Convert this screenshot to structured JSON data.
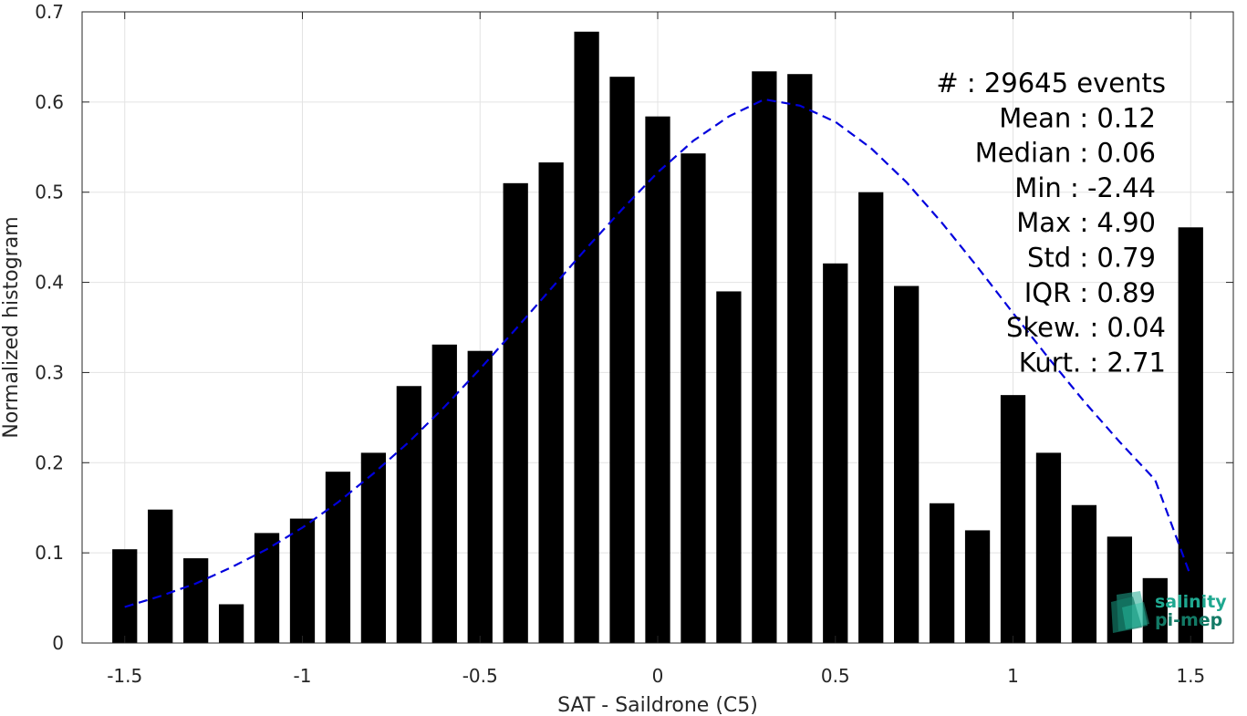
{
  "chart_data": {
    "type": "bar",
    "xlabel": "SAT - Saildrone (C5)",
    "ylabel": "Normalized histogram",
    "xlim": [
      -1.62,
      1.62
    ],
    "ylim": [
      0,
      0.7
    ],
    "xticks": [
      -1.5,
      -1,
      -0.5,
      0,
      0.5,
      1,
      1.5
    ],
    "xtick_labels": [
      "-1.5",
      "-1",
      "-0.5",
      "0",
      "0.5",
      "1",
      "1.5"
    ],
    "yticks": [
      0,
      0.1,
      0.2,
      0.3,
      0.4,
      0.5,
      0.6,
      0.7
    ],
    "ytick_labels": [
      "0",
      "0.1",
      "0.2",
      "0.3",
      "0.4",
      "0.5",
      "0.6",
      "0.7"
    ],
    "grid": true,
    "bar_color": "#000000",
    "bin_width": 0.1,
    "x": [
      -1.5,
      -1.4,
      -1.3,
      -1.2,
      -1.1,
      -1.0,
      -0.9,
      -0.8,
      -0.7,
      -0.6,
      -0.5,
      -0.4,
      -0.3,
      -0.2,
      -0.1,
      0.0,
      0.1,
      0.2,
      0.3,
      0.4,
      0.5,
      0.6,
      0.7,
      0.8,
      0.9,
      1.0,
      1.1,
      1.2,
      1.3,
      1.4,
      1.5
    ],
    "values": [
      0.104,
      0.148,
      0.094,
      0.043,
      0.122,
      0.138,
      0.19,
      0.211,
      0.285,
      0.331,
      0.324,
      0.51,
      0.533,
      0.678,
      0.628,
      0.584,
      0.543,
      0.39,
      0.634,
      0.631,
      0.421,
      0.5,
      0.396,
      0.155,
      0.125,
      0.275,
      0.211,
      0.153,
      0.118,
      0.072,
      0.461
    ],
    "fit": {
      "type": "gaussian",
      "color": "#0000dd",
      "style": "dashed",
      "x": [
        -1.5,
        -1.4,
        -1.3,
        -1.2,
        -1.1,
        -1.0,
        -0.9,
        -0.8,
        -0.7,
        -0.6,
        -0.5,
        -0.4,
        -0.3,
        -0.2,
        -0.1,
        0.0,
        0.1,
        0.2,
        0.3,
        0.4,
        0.5,
        0.6,
        0.7,
        0.8,
        0.9,
        1.0,
        1.1,
        1.2,
        1.3,
        1.4,
        1.5
      ],
      "y": [
        0.04,
        0.052,
        0.066,
        0.084,
        0.104,
        0.128,
        0.156,
        0.188,
        0.223,
        0.262,
        0.304,
        0.348,
        0.393,
        0.438,
        0.481,
        0.522,
        0.557,
        0.584,
        0.603,
        0.596,
        0.578,
        0.549,
        0.511,
        0.466,
        0.417,
        0.366,
        0.316,
        0.268,
        0.223,
        0.181,
        0.074
      ]
    },
    "annotations": [
      "#  : 29645 events",
      "Mean : 0.12",
      "Median : 0.06",
      "Min : -2.44",
      "Max : 4.90",
      "Std : 0.79",
      "IQR : 0.89",
      "Skew. : 0.04",
      "Kurt. : 2.71"
    ]
  },
  "logo": {
    "line1": "salinity",
    "line2": "pi-mep",
    "color": "#1fa890"
  }
}
